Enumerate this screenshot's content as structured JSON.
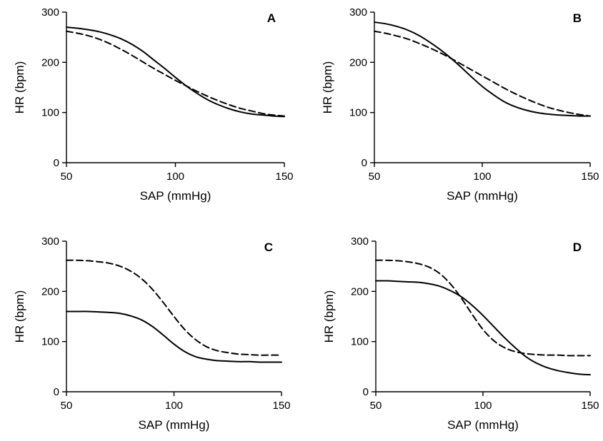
{
  "chart_data": [
    {
      "type": "line",
      "panel_label": "A",
      "xlabel": "SAP (mmHg)",
      "ylabel": "HR (bpm)",
      "xlim": [
        50,
        150
      ],
      "ylim": [
        0,
        300
      ],
      "xticks": [
        "50",
        "100",
        "150"
      ],
      "yticks": [
        "0",
        "100",
        "200",
        "300"
      ],
      "grid": false,
      "series": [
        {
          "style": "solid",
          "x": [
            50,
            55,
            60,
            65,
            70,
            75,
            80,
            85,
            90,
            95,
            100,
            105,
            110,
            115,
            120,
            125,
            130,
            135,
            140,
            145,
            150
          ],
          "y": [
            270,
            268,
            265,
            261,
            255,
            247,
            236,
            222,
            205,
            188,
            170,
            153,
            138,
            125,
            115,
            107,
            101,
            97,
            95,
            93,
            92
          ]
        },
        {
          "style": "dashed",
          "x": [
            50,
            55,
            60,
            65,
            70,
            75,
            80,
            85,
            90,
            95,
            100,
            105,
            110,
            115,
            120,
            125,
            130,
            135,
            140,
            145,
            150
          ],
          "y": [
            262,
            258,
            253,
            246,
            237,
            226,
            214,
            201,
            188,
            176,
            164,
            153,
            142,
            132,
            123,
            115,
            108,
            103,
            98,
            95,
            93
          ]
        }
      ]
    },
    {
      "type": "line",
      "panel_label": "B",
      "xlabel": "SAP (mmHg)",
      "ylabel": "HR (bpm)",
      "xlim": [
        50,
        150
      ],
      "ylim": [
        0,
        300
      ],
      "xticks": [
        "50",
        "100",
        "150"
      ],
      "yticks": [
        "0",
        "100",
        "200",
        "300"
      ],
      "grid": false,
      "series": [
        {
          "style": "solid",
          "x": [
            50,
            55,
            60,
            65,
            70,
            75,
            80,
            85,
            90,
            95,
            100,
            105,
            110,
            115,
            120,
            125,
            130,
            135,
            140,
            145,
            150
          ],
          "y": [
            280,
            277,
            272,
            265,
            255,
            242,
            227,
            210,
            191,
            171,
            152,
            136,
            122,
            112,
            105,
            100,
            97,
            95,
            94,
            93,
            93
          ]
        },
        {
          "style": "dashed",
          "x": [
            50,
            55,
            60,
            65,
            70,
            75,
            80,
            85,
            90,
            95,
            100,
            105,
            110,
            115,
            120,
            125,
            130,
            135,
            140,
            145,
            150
          ],
          "y": [
            262,
            258,
            253,
            247,
            239,
            230,
            220,
            209,
            197,
            185,
            173,
            161,
            149,
            138,
            128,
            119,
            111,
            105,
            100,
            96,
            93
          ]
        }
      ]
    },
    {
      "type": "line",
      "panel_label": "C",
      "xlabel": "SAP (mmHg)",
      "ylabel": "HR (bpm)",
      "xlim": [
        50,
        150
      ],
      "ylim": [
        0,
        300
      ],
      "xticks": [
        "50",
        "100",
        "150"
      ],
      "yticks": [
        "0",
        "100",
        "200",
        "300"
      ],
      "grid": false,
      "series": [
        {
          "style": "solid",
          "x": [
            50,
            55,
            60,
            65,
            70,
            75,
            80,
            85,
            90,
            95,
            100,
            105,
            110,
            115,
            120,
            125,
            130,
            135,
            140,
            145,
            150
          ],
          "y": [
            160,
            160,
            160,
            159,
            158,
            156,
            151,
            143,
            130,
            113,
            95,
            80,
            70,
            65,
            62,
            61,
            60,
            60,
            59,
            59,
            59
          ]
        },
        {
          "style": "dashed",
          "x": [
            50,
            55,
            60,
            65,
            70,
            75,
            80,
            85,
            90,
            95,
            100,
            105,
            110,
            115,
            120,
            125,
            130,
            135,
            140,
            145,
            150
          ],
          "y": [
            262,
            262,
            261,
            259,
            256,
            250,
            240,
            225,
            204,
            178,
            150,
            124,
            104,
            90,
            82,
            78,
            75,
            74,
            73,
            73,
            73
          ]
        }
      ]
    },
    {
      "type": "line",
      "panel_label": "D",
      "xlabel": "SAP (mmHg)",
      "ylabel": "HR (bpm)",
      "xlim": [
        50,
        150
      ],
      "ylim": [
        0,
        300
      ],
      "xticks": [
        "50",
        "100",
        "150"
      ],
      "yticks": [
        "0",
        "100",
        "200",
        "300"
      ],
      "grid": false,
      "series": [
        {
          "style": "solid",
          "x": [
            50,
            55,
            60,
            65,
            70,
            75,
            80,
            85,
            90,
            95,
            100,
            105,
            110,
            115,
            120,
            125,
            130,
            135,
            140,
            145,
            150
          ],
          "y": [
            221,
            221,
            220,
            219,
            218,
            215,
            210,
            201,
            189,
            172,
            152,
            130,
            108,
            88,
            70,
            57,
            48,
            42,
            38,
            35,
            34
          ]
        },
        {
          "style": "dashed",
          "x": [
            50,
            55,
            60,
            65,
            70,
            75,
            80,
            85,
            90,
            95,
            100,
            105,
            110,
            115,
            120,
            125,
            130,
            135,
            140,
            145,
            150
          ],
          "y": [
            262,
            262,
            261,
            259,
            255,
            248,
            235,
            214,
            186,
            154,
            124,
            102,
            88,
            80,
            76,
            74,
            73,
            73,
            72,
            72,
            72
          ]
        }
      ]
    }
  ]
}
